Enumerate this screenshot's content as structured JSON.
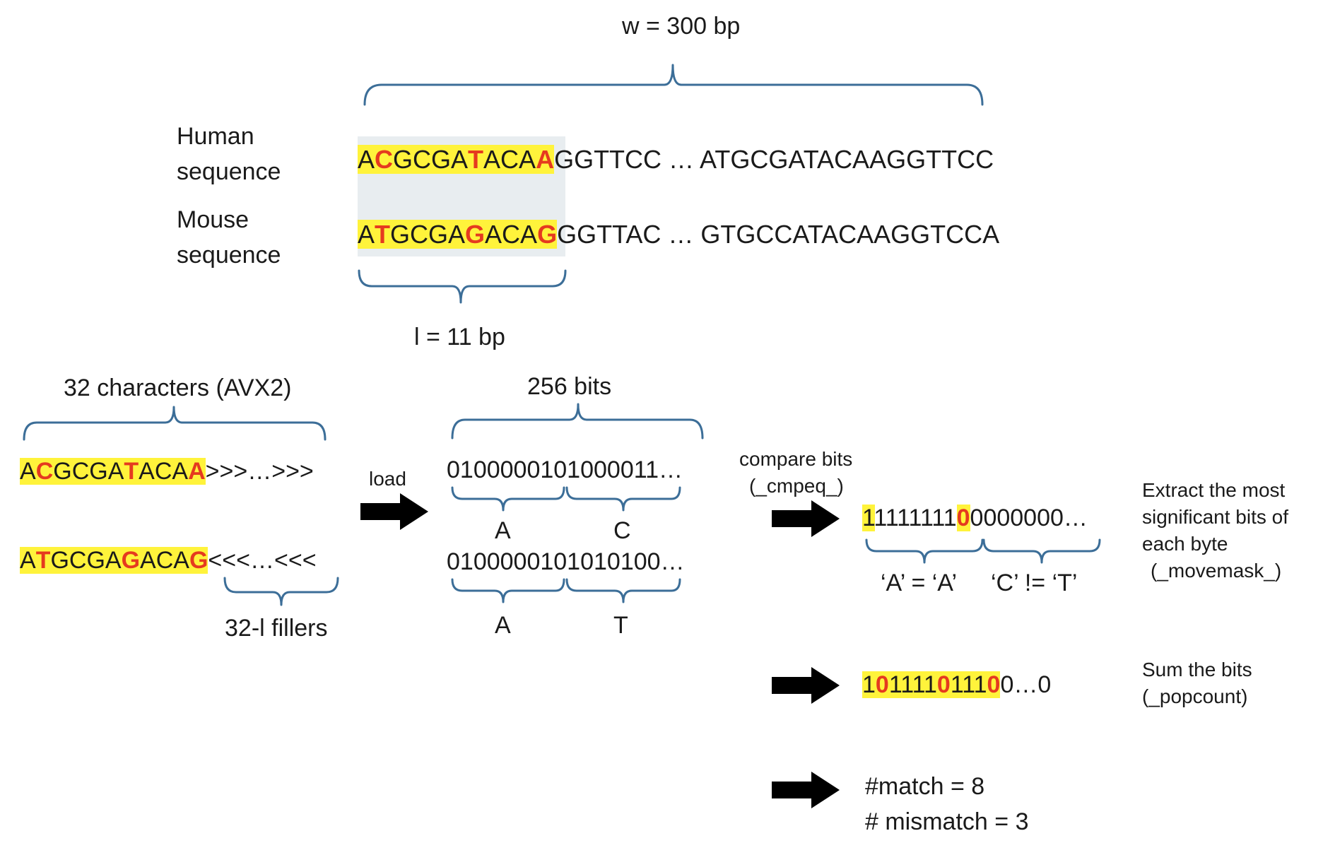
{
  "colors": {
    "highlight": "#fff33b",
    "mismatch": "#e53a1f",
    "brace": "#3c6e98",
    "window_shade": "#e8edf0",
    "arrow": "#000000"
  },
  "top": {
    "window_label": "w = 300 bp",
    "human_label": [
      "Human",
      "sequence"
    ],
    "mouse_label": [
      "Mouse",
      "sequence"
    ],
    "human_seq": [
      {
        "t": "A",
        "hl": true,
        "red": false
      },
      {
        "t": "C",
        "hl": true,
        "red": true
      },
      {
        "t": "GCGA",
        "hl": true,
        "red": false
      },
      {
        "t": "T",
        "hl": true,
        "red": true
      },
      {
        "t": "ACA",
        "hl": true,
        "red": false
      },
      {
        "t": "A",
        "hl": true,
        "red": true
      },
      {
        "t": "GGTTCC … ATGCGATACAAGGTTCC",
        "hl": false,
        "red": false
      }
    ],
    "mouse_seq": [
      {
        "t": "A",
        "hl": true,
        "red": false
      },
      {
        "t": "T",
        "hl": true,
        "red": true
      },
      {
        "t": "GCGA",
        "hl": true,
        "red": false
      },
      {
        "t": "G",
        "hl": true,
        "red": true
      },
      {
        "t": "ACA",
        "hl": true,
        "red": false
      },
      {
        "t": "G",
        "hl": true,
        "red": true
      },
      {
        "t": "GGTTAC … GTGCCATACAAGGTCCA",
        "hl": false,
        "red": false
      }
    ],
    "l_label": "l = 11 bp"
  },
  "left": {
    "chars_label": "32 characters (AVX2)",
    "seq1": [
      {
        "t": "A",
        "hl": true,
        "red": false
      },
      {
        "t": "C",
        "hl": true,
        "red": true
      },
      {
        "t": "GCGA",
        "hl": true,
        "red": false
      },
      {
        "t": "T",
        "hl": true,
        "red": true
      },
      {
        "t": "ACA",
        "hl": true,
        "red": false
      },
      {
        "t": "A",
        "hl": true,
        "red": true
      },
      {
        "t": ">>>…>>>",
        "hl": false,
        "red": false
      }
    ],
    "seq2": [
      {
        "t": "A",
        "hl": true,
        "red": false
      },
      {
        "t": "T",
        "hl": true,
        "red": true
      },
      {
        "t": "GCGA",
        "hl": true,
        "red": false
      },
      {
        "t": "G",
        "hl": true,
        "red": true
      },
      {
        "t": "ACA",
        "hl": true,
        "red": false
      },
      {
        "t": "G",
        "hl": true,
        "red": true
      },
      {
        "t": "<<<…<<<",
        "hl": false,
        "red": false
      }
    ],
    "fillers_label": "32-l fillers",
    "load_label": "load"
  },
  "middle": {
    "bits_label": "256 bits",
    "bits1": "0100000101000011…",
    "bits1_a": "A",
    "bits1_c": "C",
    "bits2": "0100000101010100…",
    "bits2_a": "A",
    "bits2_t": "T"
  },
  "right": {
    "compare_label": [
      "compare bits",
      "(_cmpeq_)"
    ],
    "cmp_result": [
      {
        "t": "1",
        "hl": true,
        "red": false
      },
      {
        "t": "1111111",
        "hl": false,
        "red": false
      },
      {
        "t": "0",
        "hl": true,
        "red": true
      },
      {
        "t": "0000000…",
        "hl": false,
        "red": false
      }
    ],
    "eq_label": "‘A’ = ‘A’",
    "neq_label": "‘C’ != ‘T’",
    "movemask_label": [
      "Extract the most",
      "significant bits of",
      "each byte",
      "(_movemask_)"
    ],
    "mask_result": [
      {
        "t": "1",
        "hl": true,
        "red": false
      },
      {
        "t": "0",
        "hl": true,
        "red": true
      },
      {
        "t": "1111",
        "hl": true,
        "red": false
      },
      {
        "t": "0",
        "hl": true,
        "red": true
      },
      {
        "t": "111",
        "hl": true,
        "red": false
      },
      {
        "t": "0",
        "hl": true,
        "red": true
      },
      {
        "t": "0…0",
        "hl": false,
        "red": false
      }
    ],
    "popcount_label": [
      "Sum the bits",
      "(_popcount)"
    ],
    "match_label": "#match = 8",
    "mismatch_label": "# mismatch = 3"
  }
}
